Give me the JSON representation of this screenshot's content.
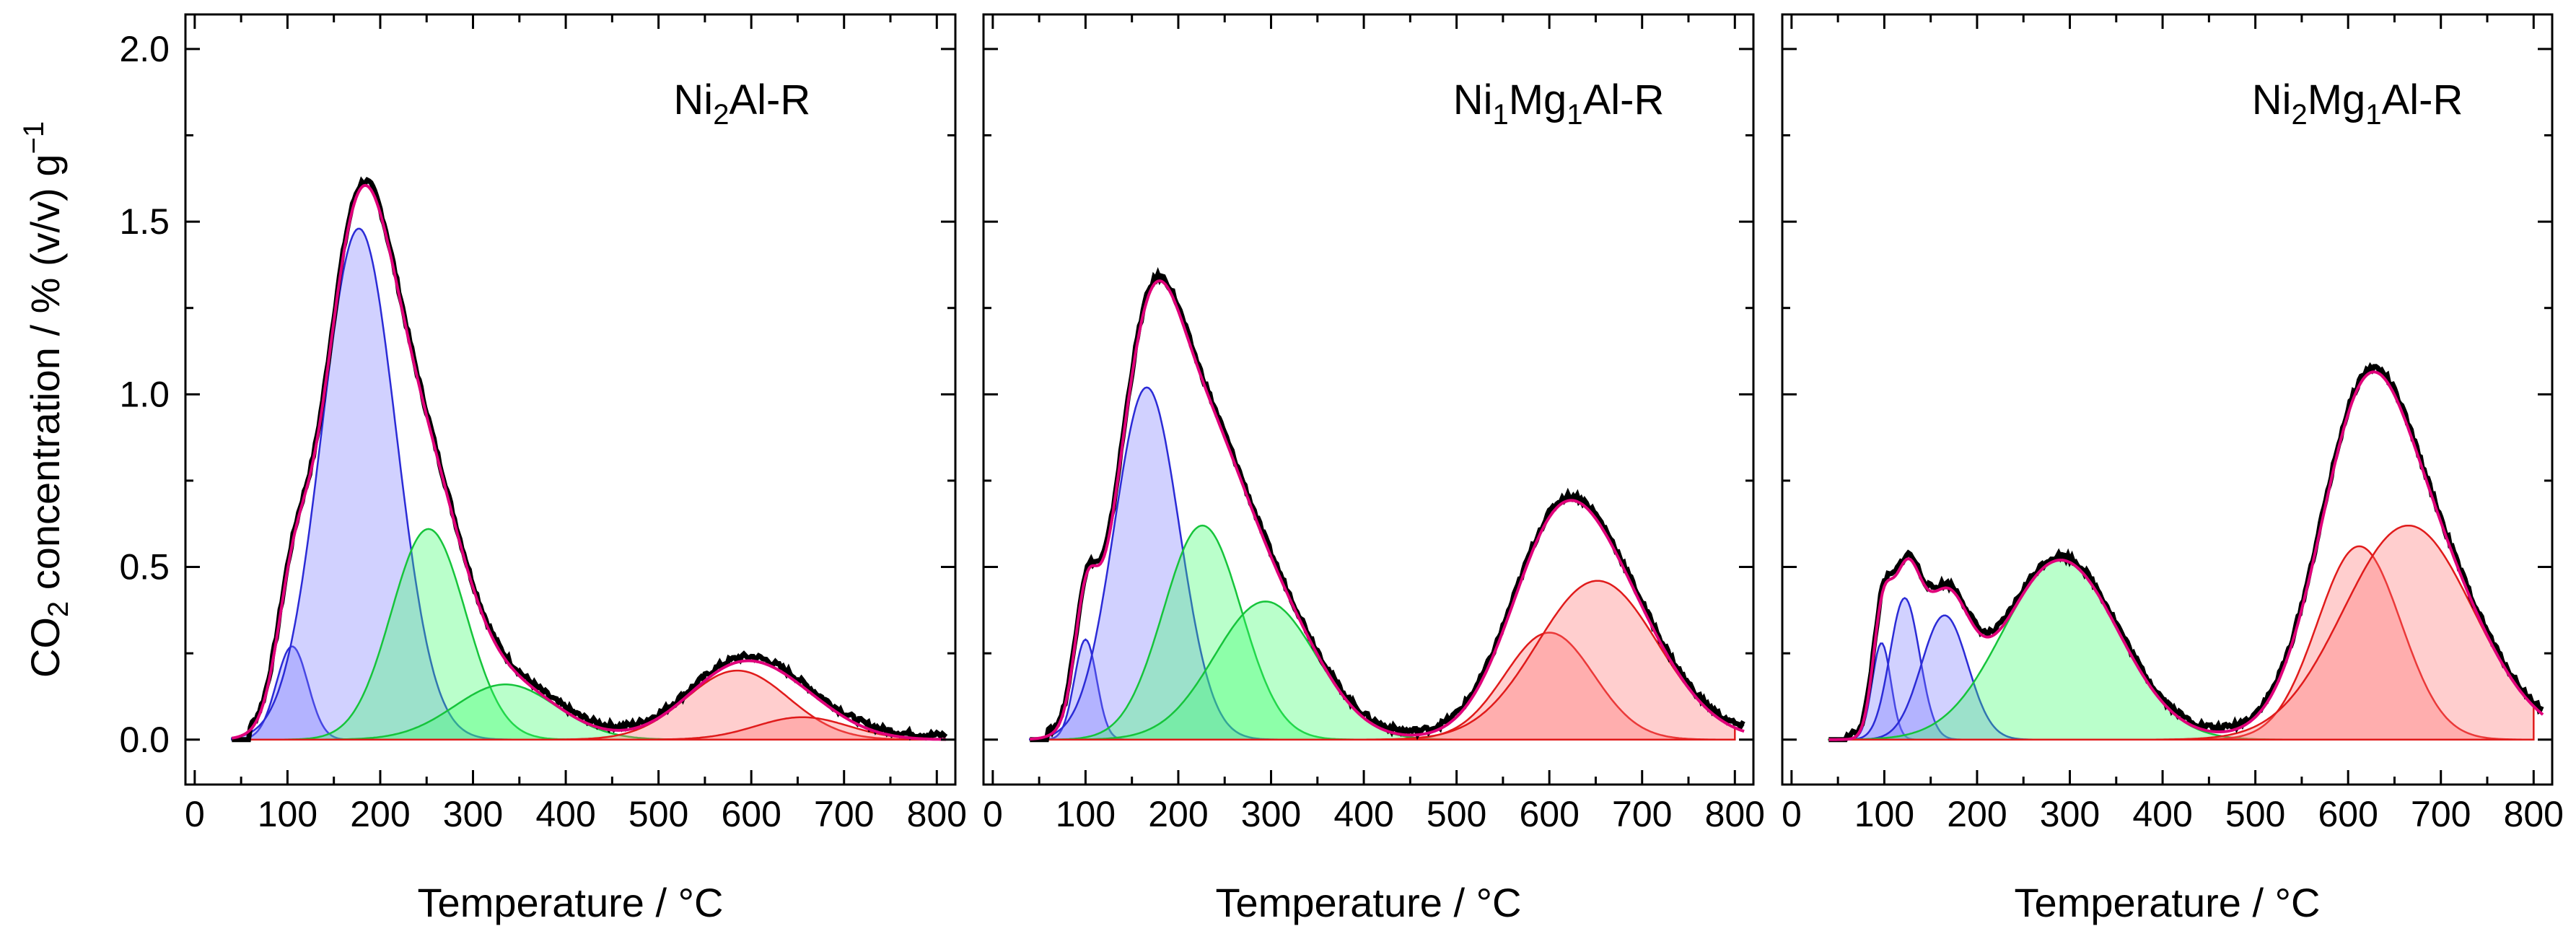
{
  "figure": {
    "y_axis_label": {
      "main": "CO",
      "sub": "2",
      "rest": " concentration / % (v/v) g",
      "sup": "−1"
    }
  },
  "chart_data": [
    {
      "type": "area",
      "panel_label": {
        "parts": [
          {
            "t": "Ni"
          },
          {
            "t": "2",
            "sub": true
          },
          {
            "t": "Al-R"
          }
        ]
      },
      "xlabel": "Temperature / °C",
      "ylabel": "CO2 concentration / % (v/v) g−1",
      "xlim": [
        -10,
        820
      ],
      "ylim": [
        -0.13,
        2.1
      ],
      "xticks": [
        0,
        100,
        200,
        300,
        400,
        500,
        600,
        700,
        800
      ],
      "yticks": [
        0.0,
        0.5,
        1.0,
        1.5,
        2.0
      ],
      "fit_envelope_color": "#e0007a",
      "measured_color": "#000000",
      "peaks": [
        {
          "center": 105,
          "height": 0.27,
          "sigma": 17,
          "group": "blue"
        },
        {
          "center": 177,
          "height": 1.48,
          "sigma": 40,
          "group": "blue"
        },
        {
          "center": 252,
          "height": 0.61,
          "sigma": 40,
          "group": "green"
        },
        {
          "center": 335,
          "height": 0.16,
          "sigma": 55,
          "group": "green"
        },
        {
          "center": 585,
          "height": 0.2,
          "sigma": 55,
          "group": "red"
        },
        {
          "center": 655,
          "height": 0.065,
          "sigma": 50,
          "group": "red"
        }
      ]
    },
    {
      "type": "area",
      "panel_label": {
        "parts": [
          {
            "t": "Ni"
          },
          {
            "t": "1",
            "sub": true
          },
          {
            "t": "Mg"
          },
          {
            "t": "1",
            "sub": true
          },
          {
            "t": "Al-R"
          }
        ]
      },
      "xlabel": "Temperature / °C",
      "ylabel": "CO2 concentration / % (v/v) g−1",
      "xlim": [
        -10,
        820
      ],
      "ylim": [
        -0.13,
        2.1
      ],
      "xticks": [
        0,
        100,
        200,
        300,
        400,
        500,
        600,
        700,
        800
      ],
      "yticks": [
        0.0,
        0.5,
        1.0,
        1.5,
        2.0
      ],
      "fit_envelope_color": "#e0007a",
      "measured_color": "#000000",
      "peaks": [
        {
          "center": 100,
          "height": 0.29,
          "sigma": 12,
          "group": "blue"
        },
        {
          "center": 166,
          "height": 1.02,
          "sigma": 35,
          "group": "blue"
        },
        {
          "center": 226,
          "height": 0.62,
          "sigma": 42,
          "group": "green"
        },
        {
          "center": 294,
          "height": 0.4,
          "sigma": 55,
          "group": "green"
        },
        {
          "center": 600,
          "height": 0.31,
          "sigma": 48,
          "group": "red"
        },
        {
          "center": 652,
          "height": 0.46,
          "sigma": 65,
          "group": "red"
        }
      ]
    },
    {
      "type": "area",
      "panel_label": {
        "parts": [
          {
            "t": "Ni"
          },
          {
            "t": "2",
            "sub": true
          },
          {
            "t": "Mg"
          },
          {
            "t": "1",
            "sub": true
          },
          {
            "t": "Al-R"
          }
        ]
      },
      "xlabel": "Temperature / °C",
      "ylabel": "CO2 concentration / % (v/v) g−1",
      "xlim": [
        -10,
        820
      ],
      "ylim": [
        -0.13,
        2.1
      ],
      "xticks": [
        0,
        100,
        200,
        300,
        400,
        500,
        600,
        700,
        800
      ],
      "yticks": [
        0.0,
        0.5,
        1.0,
        1.5,
        2.0
      ],
      "fit_envelope_color": "#e0007a",
      "measured_color": "#000000",
      "peaks": [
        {
          "center": 97,
          "height": 0.28,
          "sigma": 10,
          "group": "blue"
        },
        {
          "center": 122,
          "height": 0.41,
          "sigma": 16,
          "group": "blue"
        },
        {
          "center": 165,
          "height": 0.36,
          "sigma": 25,
          "group": "blue"
        },
        {
          "center": 290,
          "height": 0.52,
          "sigma": 62,
          "group": "green"
        },
        {
          "center": 612,
          "height": 0.56,
          "sigma": 45,
          "group": "red"
        },
        {
          "center": 665,
          "height": 0.62,
          "sigma": 70,
          "group": "red"
        }
      ]
    }
  ],
  "peak_styles": {
    "blue": {
      "fill": "#7c7cff",
      "stroke": "#2b2bd6"
    },
    "green": {
      "fill": "#39ff6a",
      "stroke": "#16c43b"
    },
    "red": {
      "fill": "#ff7474",
      "stroke": "#e01b1b"
    }
  }
}
